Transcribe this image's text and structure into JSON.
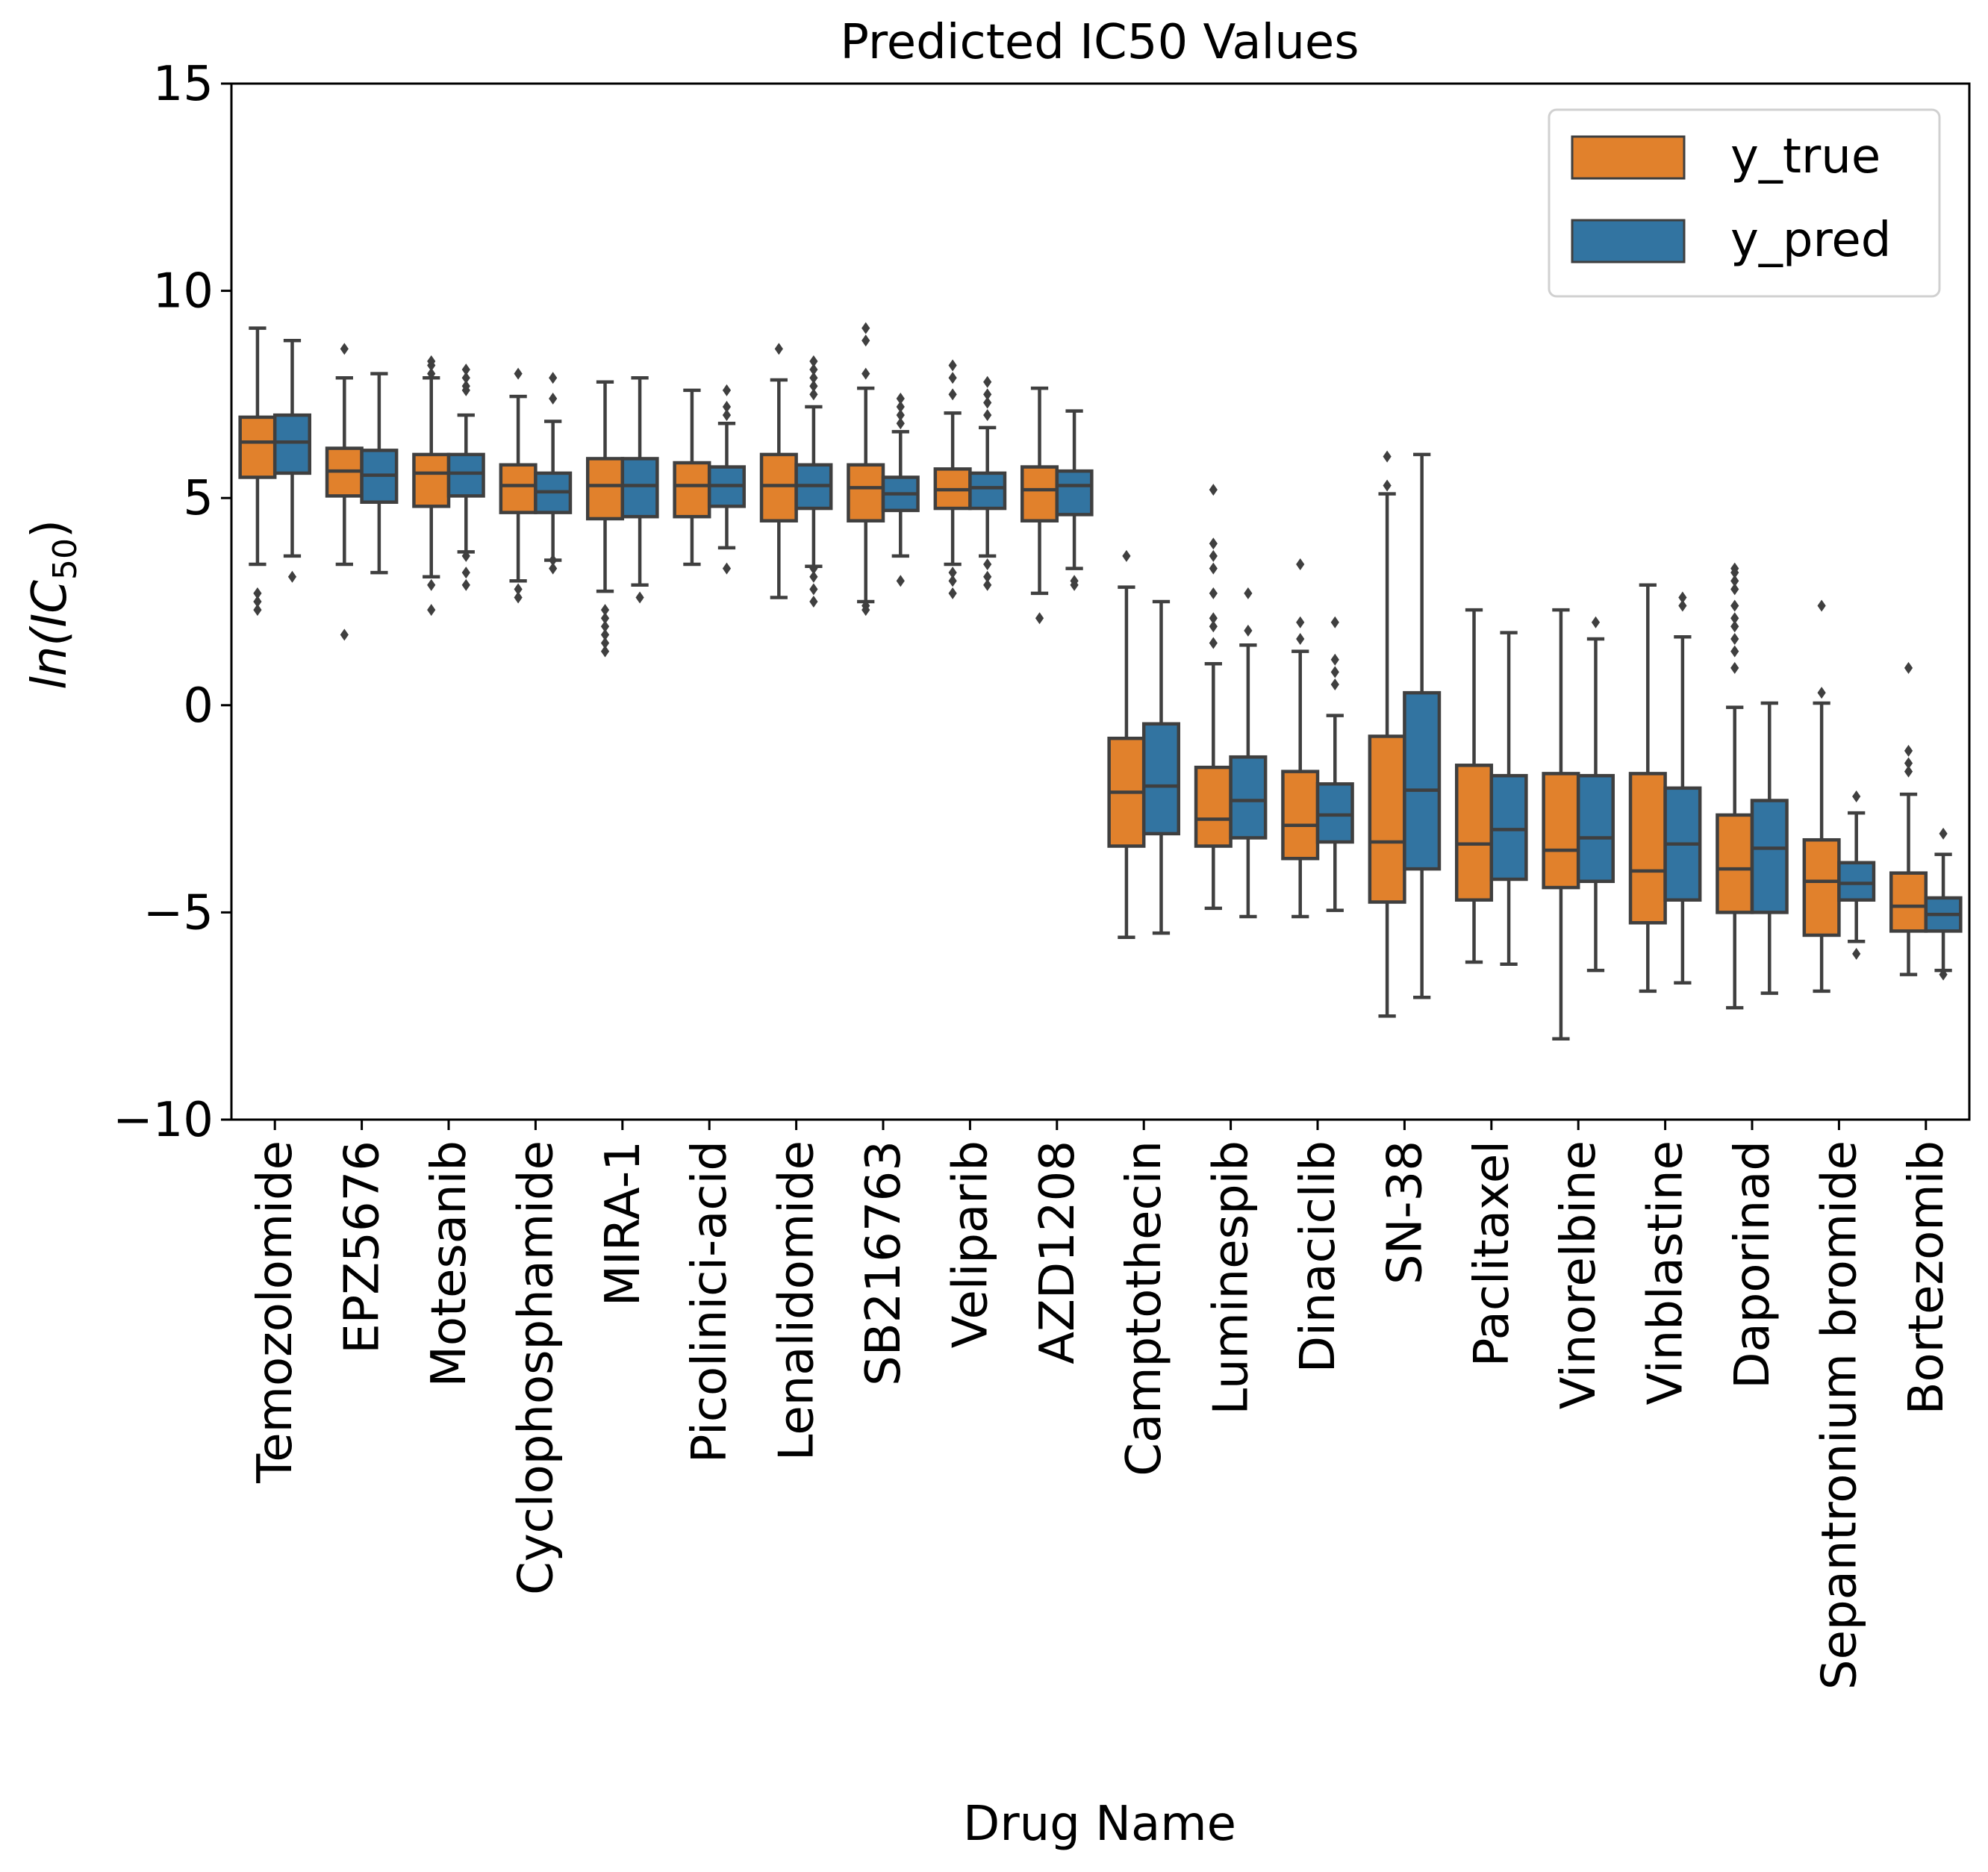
{
  "chart_data": {
    "type": "box",
    "title": "Predicted IC50 Values",
    "xlabel": "Drug Name",
    "ylabel_main": "ln(IC",
    "ylabel_sub": "50",
    "ylabel_close": ")",
    "ylim": [
      -10,
      15
    ],
    "yticks": [
      -10,
      -5,
      0,
      5,
      10,
      15
    ],
    "ytick_labels": [
      "−10",
      "−5",
      "0",
      "5",
      "10",
      "15"
    ],
    "legend_position": "top-right",
    "series": [
      {
        "name": "y_true",
        "color": "#e1812c"
      },
      {
        "name": "y_pred",
        "color": "#3274a1"
      }
    ],
    "categories": [
      "Temozolomide",
      "EPZ5676",
      "Motesanib",
      "Cyclophosphamide",
      "MIRA-1",
      "Picolinici-acid",
      "Lenalidomide",
      "SB216763",
      "Veliparib",
      "AZD1208",
      "Camptothecin",
      "Luminespib",
      "Dinaciclib",
      "SN-38",
      "Paclitaxel",
      "Vinorelbine",
      "Vinblastine",
      "Daporinad",
      "Sepantronium bromide",
      "Bortezomib"
    ],
    "boxes": [
      [
        {
          "whislo": 3.4,
          "q1": 5.5,
          "med": 6.35,
          "q3": 6.95,
          "whishi": 9.1,
          "fliers": [
            2.3,
            2.5,
            2.7
          ]
        },
        {
          "whislo": 3.6,
          "q1": 5.6,
          "med": 6.35,
          "q3": 7.0,
          "whishi": 8.8,
          "fliers": [
            3.1
          ]
        }
      ],
      [
        {
          "whislo": 3.4,
          "q1": 5.05,
          "med": 5.65,
          "q3": 6.2,
          "whishi": 7.9,
          "fliers": [
            1.7,
            8.6
          ]
        },
        {
          "whislo": 3.2,
          "q1": 4.9,
          "med": 5.55,
          "q3": 6.15,
          "whishi": 8.0,
          "fliers": []
        }
      ],
      [
        {
          "whislo": 3.1,
          "q1": 4.8,
          "med": 5.6,
          "q3": 6.05,
          "whishi": 7.9,
          "fliers": [
            2.3,
            2.9,
            8.0,
            8.2,
            8.3
          ]
        },
        {
          "whislo": 3.7,
          "q1": 5.05,
          "med": 5.6,
          "q3": 6.05,
          "whishi": 7.0,
          "fliers": [
            2.9,
            3.2,
            3.6,
            7.6,
            7.7,
            7.9,
            8.1
          ]
        }
      ],
      [
        {
          "whislo": 3.0,
          "q1": 4.65,
          "med": 5.3,
          "q3": 5.8,
          "whishi": 7.45,
          "fliers": [
            2.6,
            2.8,
            8.0
          ]
        },
        {
          "whislo": 3.5,
          "q1": 4.65,
          "med": 5.15,
          "q3": 5.6,
          "whishi": 6.85,
          "fliers": [
            3.3,
            3.5,
            7.4,
            7.9
          ]
        }
      ],
      [
        {
          "whislo": 2.75,
          "q1": 4.5,
          "med": 5.3,
          "q3": 5.95,
          "whishi": 7.8,
          "fliers": [
            1.3,
            1.5,
            1.7,
            1.9,
            2.1,
            2.3
          ]
        },
        {
          "whislo": 2.9,
          "q1": 4.55,
          "med": 5.3,
          "q3": 5.95,
          "whishi": 7.9,
          "fliers": [
            2.6
          ]
        }
      ],
      [
        {
          "whislo": 3.4,
          "q1": 4.55,
          "med": 5.3,
          "q3": 5.85,
          "whishi": 7.6,
          "fliers": []
        },
        {
          "whislo": 3.8,
          "q1": 4.8,
          "med": 5.3,
          "q3": 5.75,
          "whishi": 6.8,
          "fliers": [
            3.3,
            7.0,
            7.2,
            7.6
          ]
        }
      ],
      [
        {
          "whislo": 2.6,
          "q1": 4.45,
          "med": 5.3,
          "q3": 6.05,
          "whishi": 7.85,
          "fliers": [
            8.6
          ]
        },
        {
          "whislo": 3.35,
          "q1": 4.75,
          "med": 5.3,
          "q3": 5.8,
          "whishi": 7.2,
          "fliers": [
            2.5,
            2.8,
            3.1,
            3.3,
            7.5,
            7.7,
            7.9,
            8.1,
            8.3
          ]
        }
      ],
      [
        {
          "whislo": 2.5,
          "q1": 4.45,
          "med": 5.25,
          "q3": 5.8,
          "whishi": 7.65,
          "fliers": [
            2.3,
            2.4,
            8.0,
            8.8,
            9.1
          ]
        },
        {
          "whislo": 3.6,
          "q1": 4.7,
          "med": 5.1,
          "q3": 5.5,
          "whishi": 6.6,
          "fliers": [
            3.0,
            6.8,
            7.0,
            7.2,
            7.4
          ]
        }
      ],
      [
        {
          "whislo": 3.4,
          "q1": 4.75,
          "med": 5.2,
          "q3": 5.7,
          "whishi": 7.05,
          "fliers": [
            2.7,
            3.0,
            3.2,
            7.5,
            7.9,
            8.2
          ]
        },
        {
          "whislo": 3.6,
          "q1": 4.75,
          "med": 5.25,
          "q3": 5.6,
          "whishi": 6.7,
          "fliers": [
            2.9,
            3.1,
            3.4,
            7.0,
            7.3,
            7.5,
            7.8
          ]
        }
      ],
      [
        {
          "whislo": 2.7,
          "q1": 4.45,
          "med": 5.2,
          "q3": 5.75,
          "whishi": 7.65,
          "fliers": [
            2.1
          ]
        },
        {
          "whislo": 3.3,
          "q1": 4.6,
          "med": 5.3,
          "q3": 5.65,
          "whishi": 7.1,
          "fliers": [
            2.9,
            3.0
          ]
        }
      ],
      [
        {
          "whislo": -5.6,
          "q1": -3.4,
          "med": -2.1,
          "q3": -0.8,
          "whishi": 2.85,
          "fliers": [
            3.6
          ]
        },
        {
          "whislo": -5.5,
          "q1": -3.1,
          "med": -1.95,
          "q3": -0.45,
          "whishi": 2.5,
          "fliers": []
        }
      ],
      [
        {
          "whislo": -4.9,
          "q1": -3.4,
          "med": -2.75,
          "q3": -1.5,
          "whishi": 1.0,
          "fliers": [
            1.5,
            1.9,
            2.1,
            2.7,
            3.3,
            3.6,
            3.9,
            5.2
          ]
        },
        {
          "whislo": -5.1,
          "q1": -3.2,
          "med": -2.3,
          "q3": -1.25,
          "whishi": 1.45,
          "fliers": [
            1.8,
            2.7
          ]
        }
      ],
      [
        {
          "whislo": -5.1,
          "q1": -3.7,
          "med": -2.9,
          "q3": -1.6,
          "whishi": 1.3,
          "fliers": [
            1.6,
            2.0,
            3.4
          ]
        },
        {
          "whislo": -4.95,
          "q1": -3.3,
          "med": -2.65,
          "q3": -1.9,
          "whishi": -0.25,
          "fliers": [
            0.5,
            0.8,
            1.1,
            2.0
          ]
        }
      ],
      [
        {
          "whislo": -7.5,
          "q1": -4.75,
          "med": -3.3,
          "q3": -0.75,
          "whishi": 5.1,
          "fliers": [
            5.3,
            6.0
          ]
        },
        {
          "whislo": -7.05,
          "q1": -3.95,
          "med": -2.05,
          "q3": 0.3,
          "whishi": 6.05,
          "fliers": []
        }
      ],
      [
        {
          "whislo": -6.2,
          "q1": -4.7,
          "med": -3.35,
          "q3": -1.45,
          "whishi": 2.3,
          "fliers": []
        },
        {
          "whislo": -6.25,
          "q1": -4.2,
          "med": -3.0,
          "q3": -1.7,
          "whishi": 1.75,
          "fliers": []
        }
      ],
      [
        {
          "whislo": -8.05,
          "q1": -4.4,
          "med": -3.5,
          "q3": -1.65,
          "whishi": 2.3,
          "fliers": []
        },
        {
          "whislo": -6.4,
          "q1": -4.25,
          "med": -3.2,
          "q3": -1.7,
          "whishi": 1.6,
          "fliers": [
            2.0
          ]
        }
      ],
      [
        {
          "whislo": -6.9,
          "q1": -5.25,
          "med": -4.0,
          "q3": -1.65,
          "whishi": 2.9,
          "fliers": []
        },
        {
          "whislo": -6.7,
          "q1": -4.7,
          "med": -3.35,
          "q3": -2.0,
          "whishi": 1.65,
          "fliers": [
            2.4,
            2.6
          ]
        }
      ],
      [
        {
          "whislo": -7.3,
          "q1": -5.0,
          "med": -3.95,
          "q3": -2.65,
          "whishi": -0.05,
          "fliers": [
            0.9,
            1.3,
            1.6,
            1.9,
            2.1,
            2.4,
            2.8,
            3.0,
            3.2,
            3.3
          ]
        },
        {
          "whislo": -6.95,
          "q1": -5.0,
          "med": -3.45,
          "q3": -2.3,
          "whishi": 0.05,
          "fliers": []
        }
      ],
      [
        {
          "whislo": -6.9,
          "q1": -5.55,
          "med": -4.25,
          "q3": -3.25,
          "whishi": 0.05,
          "fliers": [
            0.3,
            2.4
          ]
        },
        {
          "whislo": -5.7,
          "q1": -4.7,
          "med": -4.3,
          "q3": -3.8,
          "whishi": -2.6,
          "fliers": [
            -6.0,
            -2.2
          ]
        }
      ],
      [
        {
          "whislo": -6.5,
          "q1": -5.45,
          "med": -4.85,
          "q3": -4.05,
          "whishi": -2.15,
          "fliers": [
            -1.6,
            -1.4,
            -1.1,
            0.9
          ]
        },
        {
          "whislo": -6.4,
          "q1": -5.45,
          "med": -5.05,
          "q3": -4.65,
          "whishi": -3.6,
          "fliers": [
            -6.5,
            -3.1
          ]
        }
      ]
    ]
  }
}
